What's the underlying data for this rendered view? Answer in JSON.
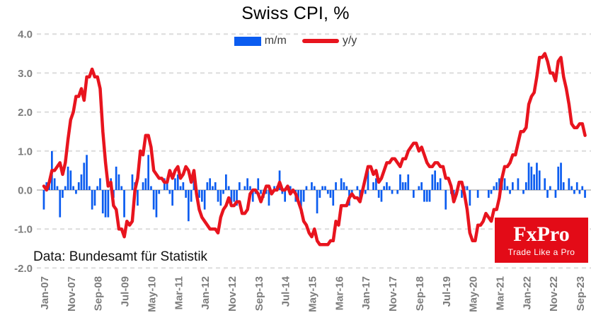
{
  "header": {
    "title": "Swiss CPI, %"
  },
  "legend": {
    "items": [
      {
        "label": "m/m",
        "color": "#0b5cf0",
        "swatch": "bar"
      },
      {
        "label": "y/y",
        "color": "#e8141e",
        "swatch": "line"
      }
    ]
  },
  "footer": {
    "source_note": "Data: Bundesamt für Statistik"
  },
  "logo": {
    "brand": "FxPro",
    "tagline": "Trade Like a Pro",
    "background": "#e30b17",
    "text_color": "#ffffff"
  },
  "colors": {
    "bar": "#0b5cf0",
    "line": "#e8141e",
    "gridline": "#dcdcdc",
    "zero_line": "#c9c9c9",
    "axis_label": "#7c7c7c",
    "title": "#000000"
  },
  "chart_data": {
    "type": "combo",
    "title": "Swiss CPI, %",
    "grid": "horizontal-dashed",
    "legend_position": "top-center",
    "x": {
      "start": "Jan-07",
      "end": "Nov-23",
      "frequency": "monthly",
      "tick_every_n_months": 10,
      "tick_labels": [
        "Jan-07",
        "Nov-07",
        "Sep-08",
        "Jul-09",
        "May-10",
        "Mar-11",
        "Jan-12",
        "Nov-12",
        "Sep-13",
        "Jul-14",
        "May-15",
        "Mar-16",
        "Jan-17",
        "Nov-17",
        "Sep-18",
        "Jul-19",
        "May-20",
        "Mar-21",
        "Jan-22",
        "Nov-22",
        "Sep-23"
      ]
    },
    "y": {
      "min": -2.0,
      "max": 4.0,
      "tick_values": [
        4,
        3,
        2,
        1,
        0,
        -1,
        -2
      ],
      "tick_labels": [
        "4.0",
        "3.0",
        "2.0",
        "1.0",
        "0.0",
        "-1.0",
        "-2.0"
      ]
    },
    "series": [
      {
        "name": "m/m",
        "type": "bar",
        "color": "#0b5cf0",
        "values": [
          -0.5,
          0.2,
          0.2,
          1.0,
          0.3,
          0.1,
          -0.7,
          -0.2,
          0.1,
          0.6,
          0.5,
          0.1,
          -0.1,
          0.2,
          0.4,
          0.7,
          0.9,
          0.1,
          -0.5,
          -0.4,
          0.1,
          0.3,
          -0.6,
          -0.7,
          -0.7,
          0.3,
          -0.2,
          0.6,
          0.4,
          0.1,
          -0.7,
          0.0,
          0.0,
          0.4,
          0.2,
          -0.4,
          0.0,
          0.2,
          0.3,
          0.9,
          0.1,
          -0.5,
          -0.7,
          -0.1,
          0.0,
          0.3,
          0.2,
          -0.1,
          -0.4,
          0.3,
          0.4,
          0.1,
          0.2,
          -0.2,
          -0.8,
          -0.3,
          0.3,
          -0.1,
          -0.2,
          -0.3,
          -0.5,
          0.2,
          0.3,
          0.1,
          0.2,
          -0.3,
          -0.4,
          -0.1,
          0.4,
          0.1,
          -0.4,
          -0.3,
          -0.4,
          0.2,
          0.0,
          0.1,
          0.3,
          0.1,
          -0.3,
          -0.1,
          0.3,
          -0.1,
          -0.2,
          -0.1,
          -0.4,
          0.0,
          0.1,
          0.1,
          0.5,
          -0.1,
          -0.3,
          0.0,
          0.1,
          0.0,
          -0.3,
          -0.3,
          -0.6,
          -0.3,
          0.1,
          0.0,
          0.2,
          0.1,
          -0.6,
          -0.2,
          0.1,
          0.1,
          -0.1,
          -0.2,
          -0.4,
          0.2,
          0.0,
          0.3,
          0.2,
          0.1,
          -0.4,
          -0.1,
          0.0,
          0.1,
          -0.2,
          0.0,
          -0.1,
          0.5,
          0.0,
          0.2,
          0.3,
          -0.2,
          -0.3,
          0.1,
          0.2,
          0.1,
          -0.1,
          0.0,
          -0.1,
          0.4,
          0.2,
          0.2,
          0.4,
          0.0,
          -0.2,
          0.0,
          0.1,
          0.2,
          -0.3,
          -0.3,
          -0.3,
          0.4,
          0.5,
          0.2,
          0.3,
          0.0,
          -0.5,
          0.0,
          -0.1,
          -0.2,
          0.0,
          0.0,
          -0.2,
          0.1,
          0.1,
          -0.4,
          0.0,
          0.0,
          -0.2,
          0.0,
          0.0,
          0.0,
          -0.2,
          -0.1,
          0.1,
          0.2,
          0.3,
          0.2,
          0.3,
          0.1,
          -0.1,
          0.2,
          0.0,
          0.3,
          0.0,
          -0.1,
          0.2,
          0.7,
          0.6,
          0.4,
          0.7,
          0.5,
          0.0,
          0.3,
          -0.2,
          0.1,
          0.0,
          -0.2,
          0.6,
          0.7,
          0.2,
          0.0,
          0.3,
          0.1,
          -0.1,
          0.2,
          -0.1,
          0.1,
          -0.2
        ]
      },
      {
        "name": "y/y",
        "type": "line",
        "color": "#e8141e",
        "values": [
          0.1,
          0.0,
          0.2,
          0.5,
          0.5,
          0.6,
          0.7,
          0.4,
          0.7,
          1.3,
          1.8,
          2.0,
          2.4,
          2.4,
          2.6,
          2.3,
          2.9,
          2.9,
          3.1,
          2.9,
          2.9,
          2.6,
          1.5,
          0.7,
          0.1,
          0.2,
          -0.4,
          -0.5,
          -1.0,
          -1.0,
          -1.2,
          -0.8,
          -0.9,
          -0.8,
          0.0,
          0.3,
          1.0,
          0.9,
          1.4,
          1.4,
          1.1,
          0.5,
          0.4,
          0.3,
          0.3,
          0.2,
          0.2,
          0.5,
          0.3,
          0.5,
          0.6,
          0.3,
          0.4,
          0.6,
          0.5,
          0.2,
          0.5,
          -0.1,
          -0.5,
          -0.7,
          -0.8,
          -0.9,
          -1.0,
          -1.0,
          -1.0,
          -1.1,
          -0.7,
          -0.5,
          -0.4,
          -0.2,
          -0.4,
          -0.4,
          -0.3,
          -0.3,
          -0.6,
          -0.6,
          -0.5,
          -0.1,
          0.0,
          0.0,
          -0.1,
          -0.3,
          -0.1,
          0.1,
          0.1,
          -0.1,
          0.0,
          0.0,
          0.2,
          0.0,
          0.0,
          0.1,
          -0.1,
          0.0,
          -0.1,
          -0.3,
          -0.5,
          -0.8,
          -0.9,
          -1.1,
          -1.2,
          -1.0,
          -1.3,
          -1.4,
          -1.4,
          -1.4,
          -1.4,
          -1.3,
          -1.3,
          -0.8,
          -0.9,
          -0.4,
          -0.4,
          -0.4,
          -0.2,
          -0.1,
          -0.2,
          -0.2,
          -0.3,
          0.0,
          0.3,
          0.6,
          0.6,
          0.4,
          0.5,
          0.2,
          0.3,
          0.5,
          0.7,
          0.7,
          0.8,
          0.8,
          0.7,
          0.6,
          0.8,
          0.8,
          1.0,
          1.1,
          1.2,
          1.2,
          1.0,
          1.1,
          0.9,
          0.7,
          0.6,
          0.6,
          0.7,
          0.7,
          0.6,
          0.6,
          0.3,
          0.3,
          0.1,
          -0.3,
          -0.1,
          0.2,
          0.2,
          -0.1,
          -0.5,
          -1.1,
          -1.3,
          -1.3,
          -0.9,
          -0.9,
          -0.8,
          -0.6,
          -0.7,
          -0.8,
          -0.5,
          -0.5,
          -0.2,
          0.3,
          0.6,
          0.6,
          0.7,
          0.9,
          0.9,
          1.2,
          1.5,
          1.5,
          1.6,
          2.2,
          2.4,
          2.5,
          2.9,
          3.4,
          3.4,
          3.5,
          3.3,
          3.0,
          3.0,
          2.8,
          3.3,
          3.4,
          2.9,
          2.6,
          2.2,
          1.7,
          1.6,
          1.6,
          1.7,
          1.7,
          1.4
        ]
      }
    ]
  }
}
